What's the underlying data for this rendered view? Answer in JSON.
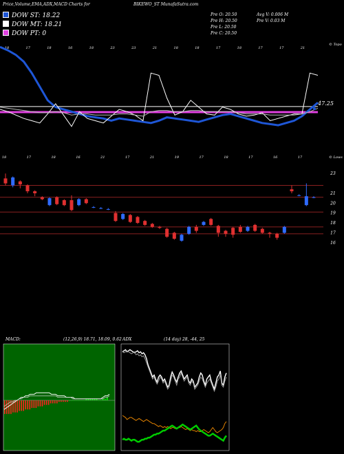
{
  "header": {
    "title": "Price,Volume,EMA,ADX,MACD Charts for",
    "symbol": "BIKEWO_ST MunafaSutra.com",
    "stats": [
      "Pre O: 20.50",
      "Pre H: 20.50",
      "Pre L: 20.50",
      "Pre C: 20.50",
      "Avg V: 0.006 M",
      "Pre V: 0.03 M"
    ]
  },
  "labels": {
    "dow_st": "DOW ST: 18.22",
    "dow_mt": "DOW MT: 18.21",
    "dow_pt": "DOW PT: 0",
    "axis_top": "© Topo",
    "axis_lower": "© Lows",
    "price_tag": "47.25",
    "macd_title": "MACD:",
    "macd_values": "(12,26,9) 18.71, 18.09, 0.62",
    "adx_title": "ADX",
    "adx_values": "(14 day) 28, -44, 25"
  },
  "colors": {
    "dow_st": "#1e56d6",
    "dow_mt": "#ffffff",
    "dow_pt": "#e040e0",
    "up_candle": "#2f6bff",
    "down_candle": "#e03030",
    "resistance": "#8a2020",
    "macd_bg": "#006400",
    "adx_plus": "#ffffff",
    "adx_minus": "#e08000",
    "adx_line": "#00cc00"
  },
  "chart_data": [
    {
      "type": "line",
      "name": "price-ema",
      "x_ticks_top": [
        "18",
        "17",
        "18",
        "16",
        "18",
        "23",
        "23",
        "21",
        "18",
        "18",
        "17",
        "18",
        "17",
        "17",
        "21"
      ],
      "x_ticks_bottom": [
        "18",
        "17",
        "18",
        "16",
        "21",
        "17",
        "21",
        "19",
        "17",
        "18",
        "17",
        "16",
        "17"
      ],
      "series": [
        {
          "values": [
            95,
            92,
            88,
            82,
            72,
            60,
            48,
            42,
            40,
            38,
            36,
            34,
            33,
            32,
            30,
            32,
            31,
            30,
            29,
            28,
            30,
            33,
            32,
            31,
            30,
            29,
            31,
            33,
            35,
            36,
            34,
            32,
            30,
            28,
            27,
            26,
            28,
            30,
            34,
            40,
            46
          ]
        },
        {
          "values": [
            40,
            38,
            35,
            32,
            30,
            28,
            36,
            45,
            35,
            25,
            38,
            32,
            30,
            28,
            34,
            40,
            38,
            35,
            30,
            72,
            70,
            50,
            35,
            38,
            48,
            42,
            36,
            35,
            42,
            40,
            36,
            34,
            35,
            37,
            30,
            32,
            34,
            36,
            36,
            72,
            70
          ]
        },
        {
          "values": [
            42,
            41,
            40,
            39,
            38,
            37,
            37,
            38,
            37,
            35,
            36,
            36,
            35,
            35,
            35,
            36,
            36,
            35,
            34,
            38,
            39,
            39,
            38,
            38,
            39,
            39,
            38,
            38,
            38,
            38,
            37,
            36,
            36,
            36,
            35,
            35,
            35,
            35,
            36,
            38,
            41
          ]
        }
      ],
      "flat_levels": [
        37.6,
        42.5
      ]
    },
    {
      "type": "bar",
      "name": "candles",
      "y_ticks": [
        "23",
        "21",
        "20",
        "19",
        "18",
        "17",
        "16"
      ],
      "candles": [
        {
          "o": 22.5,
          "c": 22.0,
          "h": 23.0,
          "l": 21.8
        },
        {
          "o": 21.8,
          "c": 22.6,
          "h": 22.7,
          "l": 21.6
        },
        {
          "o": 22.2,
          "c": 21.9,
          "h": 22.3,
          "l": 21.5
        },
        {
          "o": 21.8,
          "c": 21.2,
          "h": 21.9,
          "l": 21.0
        },
        {
          "o": 21.2,
          "c": 21.0,
          "h": 21.3,
          "l": 20.7
        },
        {
          "o": 20.6,
          "c": 20.4,
          "h": 20.7,
          "l": 20.3
        },
        {
          "o": 19.8,
          "c": 20.5,
          "h": 20.6,
          "l": 19.7
        },
        {
          "o": 20.6,
          "c": 19.9,
          "h": 20.7,
          "l": 19.8
        },
        {
          "o": 20.3,
          "c": 19.8,
          "h": 20.4,
          "l": 19.7
        },
        {
          "o": 20.3,
          "c": 19.3,
          "h": 20.8,
          "l": 19.2
        },
        {
          "o": 19.8,
          "c": 20.4,
          "h": 20.5,
          "l": 19.7
        },
        {
          "o": 20.4,
          "c": 20.0,
          "h": 20.5,
          "l": 19.9
        },
        {
          "o": 19.6,
          "c": 19.6,
          "h": 19.7,
          "l": 19.5
        },
        {
          "o": 19.5,
          "c": 19.5,
          "h": 19.6,
          "l": 19.4
        },
        {
          "o": 19.4,
          "c": 19.4,
          "h": 19.5,
          "l": 19.3
        },
        {
          "o": 19.0,
          "c": 18.2,
          "h": 19.2,
          "l": 18.1
        },
        {
          "o": 18.4,
          "c": 18.9,
          "h": 19.0,
          "l": 18.3
        },
        {
          "o": 18.8,
          "c": 18.1,
          "h": 18.9,
          "l": 18.0
        },
        {
          "o": 18.6,
          "c": 18.0,
          "h": 18.7,
          "l": 17.9
        },
        {
          "o": 18.2,
          "c": 17.8,
          "h": 18.3,
          "l": 17.7
        },
        {
          "o": 17.9,
          "c": 17.6,
          "h": 18.0,
          "l": 17.5
        },
        {
          "o": 17.6,
          "c": 17.5,
          "h": 17.7,
          "l": 17.4
        },
        {
          "o": 17.4,
          "c": 16.6,
          "h": 17.5,
          "l": 16.5
        },
        {
          "o": 17.0,
          "c": 16.4,
          "h": 17.1,
          "l": 16.3
        },
        {
          "o": 16.2,
          "c": 16.8,
          "h": 16.9,
          "l": 16.1
        },
        {
          "o": 16.9,
          "c": 17.6,
          "h": 17.7,
          "l": 16.8
        },
        {
          "o": 17.6,
          "c": 17.2,
          "h": 17.8,
          "l": 17.0
        },
        {
          "o": 17.8,
          "c": 18.1,
          "h": 18.2,
          "l": 17.7
        },
        {
          "o": 18.4,
          "c": 17.8,
          "h": 18.5,
          "l": 17.7
        },
        {
          "o": 17.7,
          "c": 17.0,
          "h": 17.8,
          "l": 16.6
        },
        {
          "o": 17.2,
          "c": 16.9,
          "h": 17.3,
          "l": 16.6
        },
        {
          "o": 17.5,
          "c": 16.8,
          "h": 17.6,
          "l": 16.5
        },
        {
          "o": 17.6,
          "c": 17.1,
          "h": 17.8,
          "l": 17.0
        },
        {
          "o": 17.2,
          "c": 17.6,
          "h": 17.7,
          "l": 17.1
        },
        {
          "o": 17.8,
          "c": 17.2,
          "h": 17.9,
          "l": 17.1
        },
        {
          "o": 17.4,
          "c": 17.0,
          "h": 17.5,
          "l": 16.9
        },
        {
          "o": 17.0,
          "c": 16.9,
          "h": 17.1,
          "l": 16.5
        },
        {
          "o": 16.9,
          "c": 16.5,
          "h": 17.0,
          "l": 16.3
        },
        {
          "o": 17.0,
          "c": 17.6,
          "h": 17.7,
          "l": 16.9
        },
        {
          "o": 21.4,
          "c": 21.2,
          "h": 21.8,
          "l": 21.0
        },
        {
          "o": 20.8,
          "c": 20.8,
          "h": 20.9,
          "l": 20.7
        },
        {
          "o": 19.8,
          "c": 20.7,
          "h": 22.0,
          "l": 19.7
        },
        {
          "o": 20.6,
          "c": 20.6,
          "h": 20.7,
          "l": 20.5
        }
      ],
      "resistance_levels": [
        21.8,
        20.6,
        19.1,
        17.6,
        16.9
      ]
    },
    {
      "type": "bar",
      "name": "macd",
      "histogram": [
        -9,
        -9,
        -9,
        -9,
        -8,
        -8,
        -8,
        -7,
        -7,
        -7,
        -6,
        -6,
        -6,
        -5,
        -5,
        -5,
        -4,
        -4,
        -4,
        -3,
        -3,
        -3,
        -2,
        -2,
        -2,
        -2,
        -1,
        -1,
        -1,
        -1,
        -1,
        0,
        0,
        0,
        0,
        0,
        0,
        0,
        0,
        1,
        1,
        1,
        1,
        1,
        1,
        0,
        0,
        1,
        1,
        2
      ],
      "macd_line": [
        -6,
        -5,
        -4,
        -3,
        -2,
        -1,
        0,
        1,
        2,
        2,
        3,
        3,
        4,
        4,
        4,
        5,
        5,
        5,
        5,
        5,
        5,
        5,
        4,
        4,
        4,
        3,
        3,
        3,
        3,
        2,
        2,
        2,
        2,
        1,
        1,
        1,
        1,
        1,
        1,
        1,
        1,
        1,
        1,
        1,
        1,
        1,
        2,
        3,
        3,
        4
      ],
      "signal_line": [
        -4,
        -3,
        -2,
        -1,
        -1,
        0,
        0,
        1,
        1,
        2,
        2,
        2,
        3,
        3,
        3,
        3,
        3,
        3,
        3,
        3,
        3,
        3,
        3,
        3,
        3,
        2,
        2,
        2,
        2,
        2,
        2,
        2,
        1,
        1,
        1,
        1,
        1,
        1,
        1,
        1,
        1,
        1,
        1,
        1,
        1,
        1,
        1,
        2,
        2,
        3
      ]
    },
    {
      "type": "line",
      "name": "adx",
      "series": [
        {
          "values": [
            95,
            96,
            97,
            95,
            96,
            97,
            96,
            95,
            94,
            95,
            96,
            94,
            95,
            93,
            94,
            92,
            88,
            82,
            78,
            74,
            70,
            72,
            68,
            65,
            70,
            72,
            70,
            66,
            68,
            64,
            60,
            62,
            70,
            75,
            72,
            68,
            65,
            70,
            74,
            76,
            72,
            68,
            70,
            72,
            66,
            64,
            68,
            66,
            60,
            62,
            64,
            70,
            74,
            72,
            66,
            62,
            68,
            70,
            72,
            66,
            62,
            58,
            64,
            70,
            72,
            76,
            64,
            62,
            70,
            74
          ]
        },
        {
          "values": [
            95,
            94,
            95,
            96,
            95,
            94,
            93,
            94,
            95,
            92,
            93,
            91,
            92,
            90,
            91,
            88,
            84,
            80,
            76,
            72,
            68,
            70,
            66,
            63,
            66,
            70,
            68,
            64,
            66,
            62,
            58,
            60,
            66,
            72,
            70,
            66,
            62,
            68,
            70,
            74,
            70,
            66,
            68,
            70,
            64,
            62,
            66,
            64,
            58,
            60,
            62,
            66,
            70,
            68,
            64,
            60,
            64,
            66,
            68,
            64,
            60,
            56,
            60,
            66,
            68,
            72,
            62,
            60,
            66,
            70
          ]
        },
        {
          "values": [
            32,
            31,
            30,
            28,
            29,
            30,
            30,
            29,
            28,
            27,
            28,
            29,
            28,
            27,
            26,
            27,
            28,
            27,
            26,
            25,
            24,
            24,
            23,
            22,
            21,
            22,
            21,
            20,
            21,
            20,
            21,
            20,
            19,
            20,
            20,
            19,
            19,
            20,
            20,
            21,
            20,
            19,
            18,
            19,
            18,
            17,
            18,
            17,
            17,
            16,
            17,
            16,
            16,
            17,
            18,
            17,
            16,
            15,
            16,
            18,
            20,
            18,
            16,
            15,
            16,
            17,
            18,
            20,
            24,
            26
          ]
        },
        {
          "values": [
            8,
            9,
            8,
            8,
            9,
            8,
            7,
            8,
            8,
            7,
            6,
            6,
            7,
            8,
            8,
            9,
            9,
            10,
            10,
            11,
            12,
            13,
            13,
            14,
            14,
            15,
            16,
            17,
            17,
            18,
            19,
            20,
            21,
            22,
            21,
            20,
            19,
            20,
            21,
            22,
            23,
            22,
            21,
            20,
            19,
            18,
            19,
            20,
            21,
            22,
            20,
            18,
            17,
            16,
            15,
            14,
            13,
            12,
            12,
            13,
            14,
            13,
            12,
            11,
            10,
            9,
            8,
            7,
            10,
            12
          ]
        }
      ]
    }
  ]
}
